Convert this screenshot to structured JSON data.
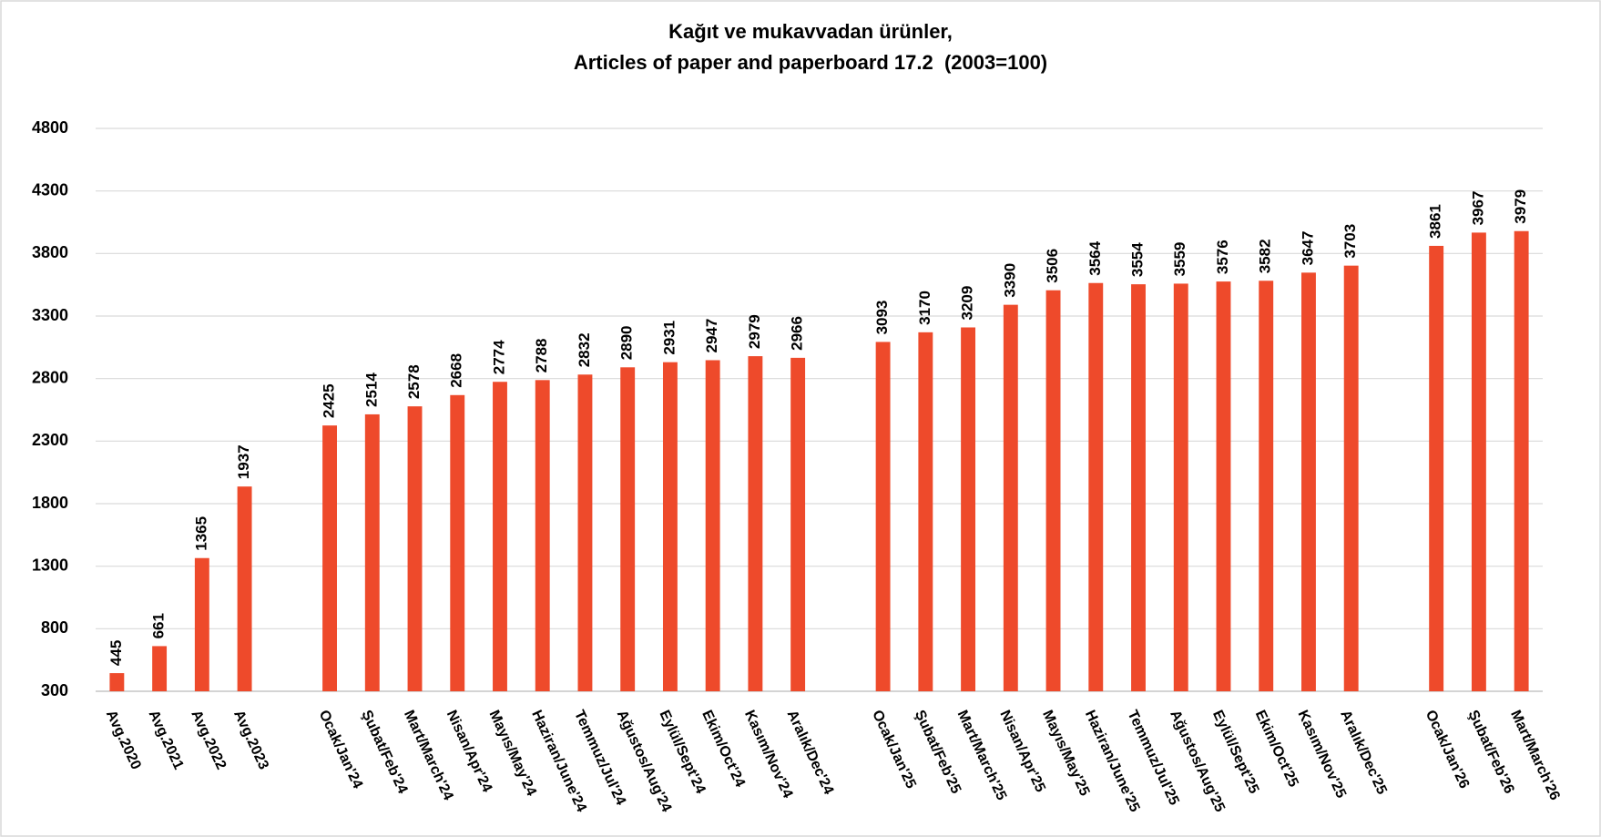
{
  "chart_data": {
    "type": "bar",
    "title": "Kağıt ve mukavvadan ürünler,",
    "subtitle": "Articles of paper and paperboard 17.2  (2003=100)",
    "categories": [
      "Avg.2020",
      "Avg.2021",
      "Avg.2022",
      "Avg.2023",
      null,
      "Ocak/Jan'24",
      "Şubat/Feb'24",
      "Mart/March'24",
      "Nisan/Apr'24",
      "Mayıs/May'24",
      "Haziran/June'24",
      "Temmuz/Jul'24",
      "Ağustos/Aug'24",
      "Eylül/Sept'24",
      "Ekim/Oct'24",
      "Kasım/Nov'24",
      "Aralık/Dec'24",
      null,
      "Ocak/Jan'25",
      "Şubat/Feb'25",
      "Mart/March'25",
      "Nisan/Apr'25",
      "Mayıs/May'25",
      "Haziran/June'25",
      "Temmuz/Jul'25",
      "Ağustos/Aug'25",
      "Eylül/Sept'25",
      "Ekim/Oct'25",
      "Kasım/Nov'25",
      "Aralık/Dec'25",
      null,
      "Ocak/Jan'26",
      "Şubat/Feb'26",
      "Mart/March'26"
    ],
    "values": [
      445,
      661,
      1365,
      1937,
      null,
      2425,
      2514,
      2578,
      2668,
      2774,
      2788,
      2832,
      2890,
      2931,
      2947,
      2979,
      2966,
      null,
      3093,
      3170,
      3209,
      3390,
      3506,
      3564,
      3554,
      3559,
      3576,
      3582,
      3647,
      3703,
      null,
      3861,
      3967,
      3979
    ],
    "color": "#ee4a2b",
    "ylim": [
      300,
      4800
    ],
    "yticks": [
      300,
      800,
      1300,
      1800,
      2300,
      2800,
      3300,
      3800,
      4300,
      4800
    ],
    "grid": true
  }
}
